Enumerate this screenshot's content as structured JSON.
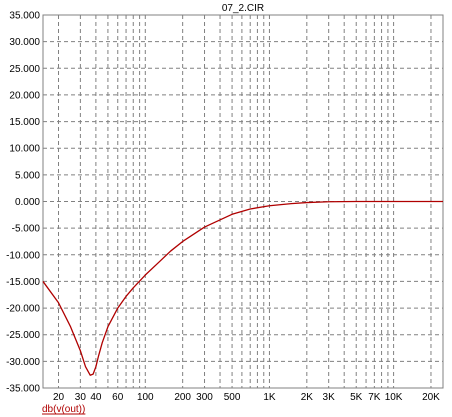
{
  "colors": {
    "trace": "#b00000",
    "grid": "#808080",
    "frame": "#808080",
    "background": "#ffffff"
  },
  "chart_data": {
    "type": "line",
    "title": "07_2.CIR",
    "xscale": "log",
    "xlim": [
      15,
      25000
    ],
    "ylim": [
      -35,
      35
    ],
    "y_ticks": [
      35,
      30,
      25,
      20,
      15,
      10,
      5,
      0,
      -5,
      -10,
      -15,
      -20,
      -25,
      -30,
      -35
    ],
    "y_tick_labels": [
      "35.000",
      "30.000",
      "25.000",
      "20.000",
      "15.000",
      "10.000",
      "5.000",
      "0.000",
      "-5.000",
      "-10.000",
      "-15.000",
      "-20.000",
      "-25.000",
      "-30.000",
      "-35.000"
    ],
    "x_ticks": [
      20,
      30,
      40,
      60,
      100,
      200,
      300,
      500,
      1000,
      2000,
      3000,
      5000,
      7000,
      10000,
      20000
    ],
    "x_tick_labels": [
      "20",
      "30",
      "40",
      "60",
      "100",
      "200",
      "300",
      "500",
      "1K",
      "2K",
      "3K",
      "5K",
      "7K",
      "10K",
      "20K"
    ],
    "x_minor_gridlines": [
      15,
      20,
      30,
      40,
      50,
      60,
      70,
      80,
      90,
      100,
      200,
      300,
      400,
      500,
      600,
      700,
      800,
      900,
      1000,
      2000,
      3000,
      4000,
      5000,
      6000,
      7000,
      8000,
      9000,
      10000,
      20000
    ],
    "grid": true,
    "series": [
      {
        "name": "db(v(out))",
        "x": [
          15,
          20,
          25,
          30,
          33,
          36,
          38,
          40,
          42,
          45,
          50,
          60,
          70,
          80,
          100,
          130,
          160,
          200,
          300,
          500,
          700,
          1000,
          1500,
          2000,
          3000,
          5000,
          10000,
          20000,
          25000
        ],
        "y": [
          -15.0,
          -19.0,
          -23.5,
          -28.0,
          -31.0,
          -32.6,
          -32.4,
          -31.0,
          -29.0,
          -26.5,
          -23.5,
          -20.0,
          -17.8,
          -16.2,
          -13.8,
          -11.3,
          -9.3,
          -7.5,
          -4.8,
          -2.4,
          -1.4,
          -0.8,
          -0.4,
          -0.2,
          -0.05,
          0.0,
          0.0,
          0.0,
          0.0
        ]
      }
    ]
  }
}
